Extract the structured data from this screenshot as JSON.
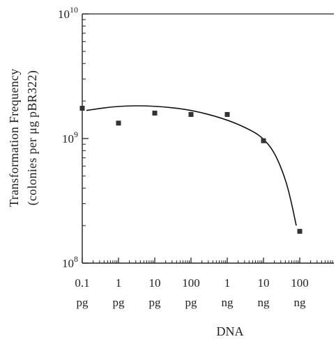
{
  "chart_data": {
    "type": "scatter",
    "y_scale": "log",
    "x_scale": "log",
    "ylim": [
      100000000,
      10000000000
    ],
    "xlim_grams": [
      1e-13,
      1e-06
    ],
    "y_ticks": [
      {
        "value": 100000000,
        "base": "10",
        "exp": "8"
      },
      {
        "value": 1000000000,
        "base": "10",
        "exp": "9"
      },
      {
        "value": 10000000000,
        "base": "10",
        "exp": "10"
      }
    ],
    "x_ticks": [
      {
        "value_grams": 1e-13,
        "top": "0.1",
        "bottom": "pg"
      },
      {
        "value_grams": 1e-12,
        "top": "1",
        "bottom": "pg"
      },
      {
        "value_grams": 1e-11,
        "top": "10",
        "bottom": "pg"
      },
      {
        "value_grams": 1e-10,
        "top": "100",
        "bottom": "pg"
      },
      {
        "value_grams": 1e-09,
        "top": "1",
        "bottom": "ng"
      },
      {
        "value_grams": 1e-08,
        "top": "10",
        "bottom": "ng"
      },
      {
        "value_grams": 1e-07,
        "top": "100",
        "bottom": "ng"
      }
    ],
    "xlabel": "DNA",
    "ylabel_line1": "Transformation   Frequency",
    "ylabel_line2": "(colonies per μg pBR322)",
    "points": [
      {
        "x_grams": 1e-13,
        "y": 1750000000
      },
      {
        "x_grams": 1e-12,
        "y": 1330000000
      },
      {
        "x_grams": 1e-11,
        "y": 1600000000
      },
      {
        "x_grams": 1e-10,
        "y": 1560000000
      },
      {
        "x_grams": 1e-09,
        "y": 1560000000
      },
      {
        "x_grams": 1e-08,
        "y": 960000000
      },
      {
        "x_grams": 1e-07,
        "y": 180000000
      }
    ],
    "fit_curve": [
      {
        "x_grams": 1.3e-13,
        "y": 1680000000
      },
      {
        "x_grams": 1e-12,
        "y": 1830000000
      },
      {
        "x_grams": 1e-11,
        "y": 1830000000
      },
      {
        "x_grams": 1e-10,
        "y": 1700000000
      },
      {
        "x_grams": 1e-09,
        "y": 1420000000
      },
      {
        "x_grams": 5e-09,
        "y": 1150000000
      },
      {
        "x_grams": 1e-08,
        "y": 1000000000
      },
      {
        "x_grams": 2e-08,
        "y": 780000000
      },
      {
        "x_grams": 4e-08,
        "y": 480000000
      },
      {
        "x_grams": 6e-08,
        "y": 300000000
      },
      {
        "x_grams": 8e-08,
        "y": 200000000
      }
    ],
    "marker_color": "#333333",
    "line_color": "#111111"
  }
}
